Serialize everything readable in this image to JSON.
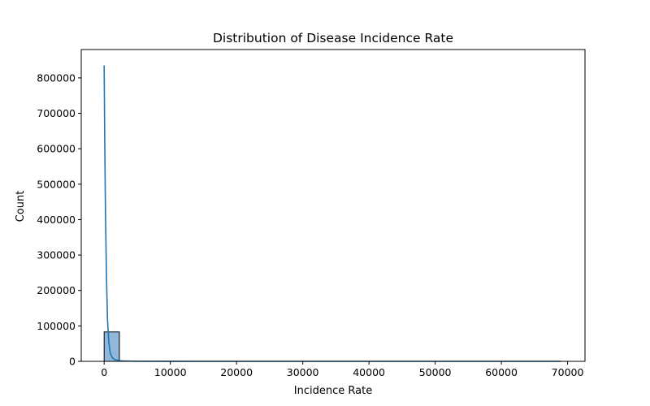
{
  "chart_data": {
    "type": "histogram",
    "title": "Distribution of Disease Incidence Rate",
    "xlabel": "Incidence Rate",
    "ylabel": "Count",
    "xlim": [
      -3460,
      72630
    ],
    "ylim": [
      0,
      880000
    ],
    "xticks": [
      0,
      10000,
      20000,
      30000,
      40000,
      50000,
      60000,
      70000
    ],
    "yticks": [
      0,
      100000,
      200000,
      300000,
      400000,
      500000,
      600000,
      700000,
      800000
    ],
    "bins": [
      {
        "x0": 0,
        "x1": 2300,
        "count": 83000
      },
      {
        "x0": 2300,
        "x1": 4600,
        "count": 900
      },
      {
        "x0": 4600,
        "x1": 6900,
        "count": 200
      },
      {
        "x0": 6900,
        "x1": 9200,
        "count": 80
      }
    ],
    "kde": {
      "x": [
        0,
        80,
        200,
        350,
        500,
        700,
        900,
        1200,
        1600,
        2200,
        3000,
        5000,
        10000,
        20000,
        40000,
        69000
      ],
      "y": [
        835000,
        640000,
        420000,
        240000,
        120000,
        55000,
        25000,
        11000,
        5000,
        2200,
        900,
        300,
        50,
        0,
        0,
        0
      ]
    },
    "colors": {
      "bar_fill": "#8fb8da",
      "bar_edge": "#000000",
      "kde_line": "#1f77b4"
    },
    "grid": false,
    "legend": "none"
  }
}
